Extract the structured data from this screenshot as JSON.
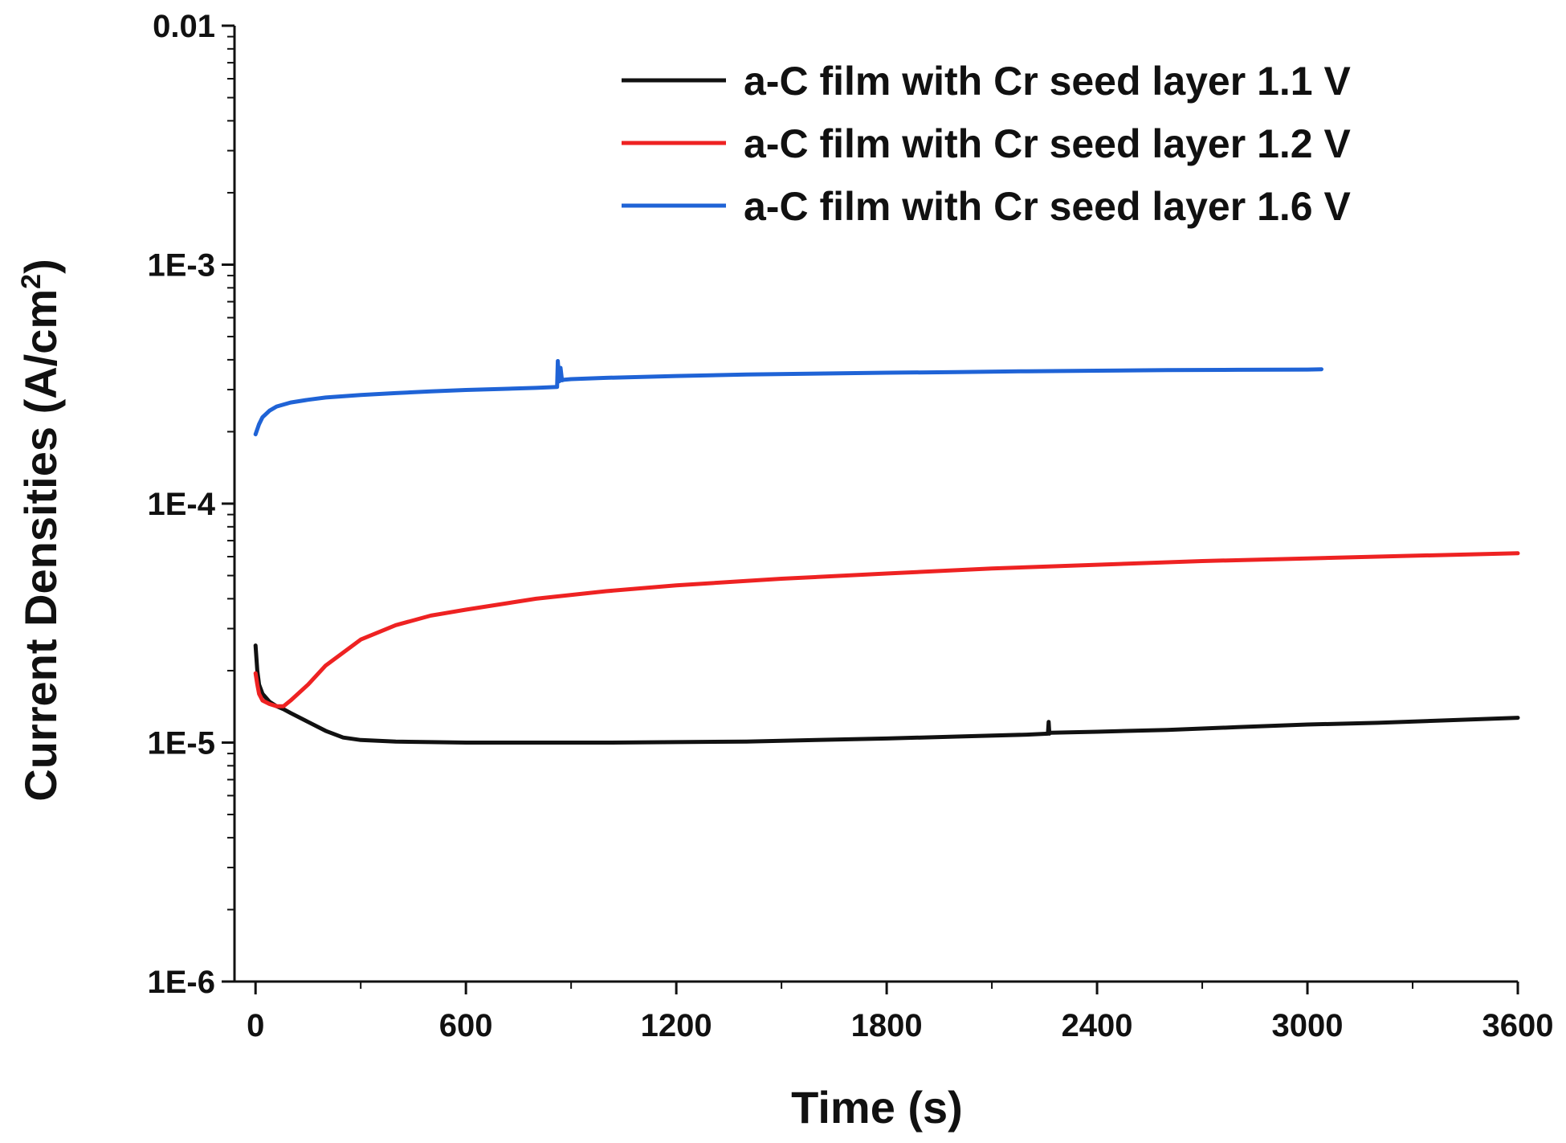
{
  "chart_data": {
    "type": "line",
    "title": "",
    "xlabel": "Time (s)",
    "ylabel": "Current Densities (A/cm",
    "ylabel_sup": "2",
    "ylabel_close": ")",
    "xlim": [
      -60,
      3600
    ],
    "ylim": [
      1e-06,
      0.01
    ],
    "yscale": "log",
    "x_ticks": [
      0,
      600,
      1200,
      1800,
      2400,
      3000,
      3600
    ],
    "x_tick_labels": [
      "0",
      "600",
      "1200",
      "1800",
      "2400",
      "3000",
      "3600"
    ],
    "y_ticks": [
      1e-06,
      1e-05,
      0.0001,
      0.001,
      0.01
    ],
    "y_tick_labels": [
      "1E-6",
      "1E-5",
      "1E-4",
      "1E-3",
      "0.01"
    ],
    "legend_position": "top-right",
    "series": [
      {
        "name": "a-C film with Cr seed layer 1.1 V",
        "color": "#111111",
        "x": [
          0,
          5,
          10,
          20,
          40,
          60,
          80,
          100,
          150,
          200,
          250,
          300,
          400,
          500,
          600,
          800,
          1000,
          1200,
          1400,
          1600,
          1800,
          2000,
          2200,
          2260,
          2262,
          2264,
          2266,
          2268,
          2400,
          2600,
          2800,
          3000,
          3200,
          3400,
          3600
        ],
        "y": [
          2.55e-05,
          2e-05,
          1.75e-05,
          1.6e-05,
          1.48e-05,
          1.42e-05,
          1.38e-05,
          1.33e-05,
          1.22e-05,
          1.12e-05,
          1.05e-05,
          1.025e-05,
          1.01e-05,
          1.005e-05,
          1e-05,
          1e-05,
          1e-05,
          1.005e-05,
          1.01e-05,
          1.025e-05,
          1.04e-05,
          1.06e-05,
          1.08e-05,
          1.09e-05,
          1.22e-05,
          1.09e-05,
          1.1e-05,
          1.1e-05,
          1.11e-05,
          1.13e-05,
          1.16e-05,
          1.19e-05,
          1.21e-05,
          1.24e-05,
          1.27e-05
        ]
      },
      {
        "name": "a-C film with Cr seed layer 1.2 V",
        "color": "#ee2222",
        "x": [
          0,
          5,
          10,
          20,
          40,
          60,
          80,
          100,
          150,
          200,
          300,
          400,
          500,
          600,
          800,
          1000,
          1200,
          1500,
          1800,
          2100,
          2400,
          2700,
          3000,
          3300,
          3600
        ],
        "y": [
          1.95e-05,
          1.75e-05,
          1.6e-05,
          1.5e-05,
          1.45e-05,
          1.42e-05,
          1.42e-05,
          1.5e-05,
          1.75e-05,
          2.1e-05,
          2.7e-05,
          3.1e-05,
          3.4e-05,
          3.6e-05,
          4e-05,
          4.3e-05,
          4.55e-05,
          4.85e-05,
          5.1e-05,
          5.35e-05,
          5.55e-05,
          5.75e-05,
          5.9e-05,
          6.05e-05,
          6.2e-05
        ]
      },
      {
        "name": "a-C film with Cr seed layer 1.6 V",
        "color": "#1f63d6",
        "x": [
          0,
          10,
          20,
          40,
          60,
          100,
          150,
          200,
          300,
          400,
          500,
          600,
          700,
          800,
          860,
          862,
          866,
          870,
          874,
          880,
          900,
          1000,
          1200,
          1400,
          1600,
          1800,
          2000,
          2200,
          2400,
          2600,
          2800,
          3000,
          3040
        ],
        "y": [
          0.000195,
          0.000215,
          0.00023,
          0.000245,
          0.000255,
          0.000265,
          0.000272,
          0.000278,
          0.000285,
          0.00029,
          0.000295,
          0.000299,
          0.000302,
          0.000305,
          0.000308,
          0.000395,
          0.000325,
          0.00037,
          0.000328,
          0.00033,
          0.000332,
          0.000336,
          0.000342,
          0.000347,
          0.00035,
          0.000353,
          0.000355,
          0.000358,
          0.00036,
          0.000362,
          0.000363,
          0.000364,
          0.000365
        ]
      }
    ]
  }
}
